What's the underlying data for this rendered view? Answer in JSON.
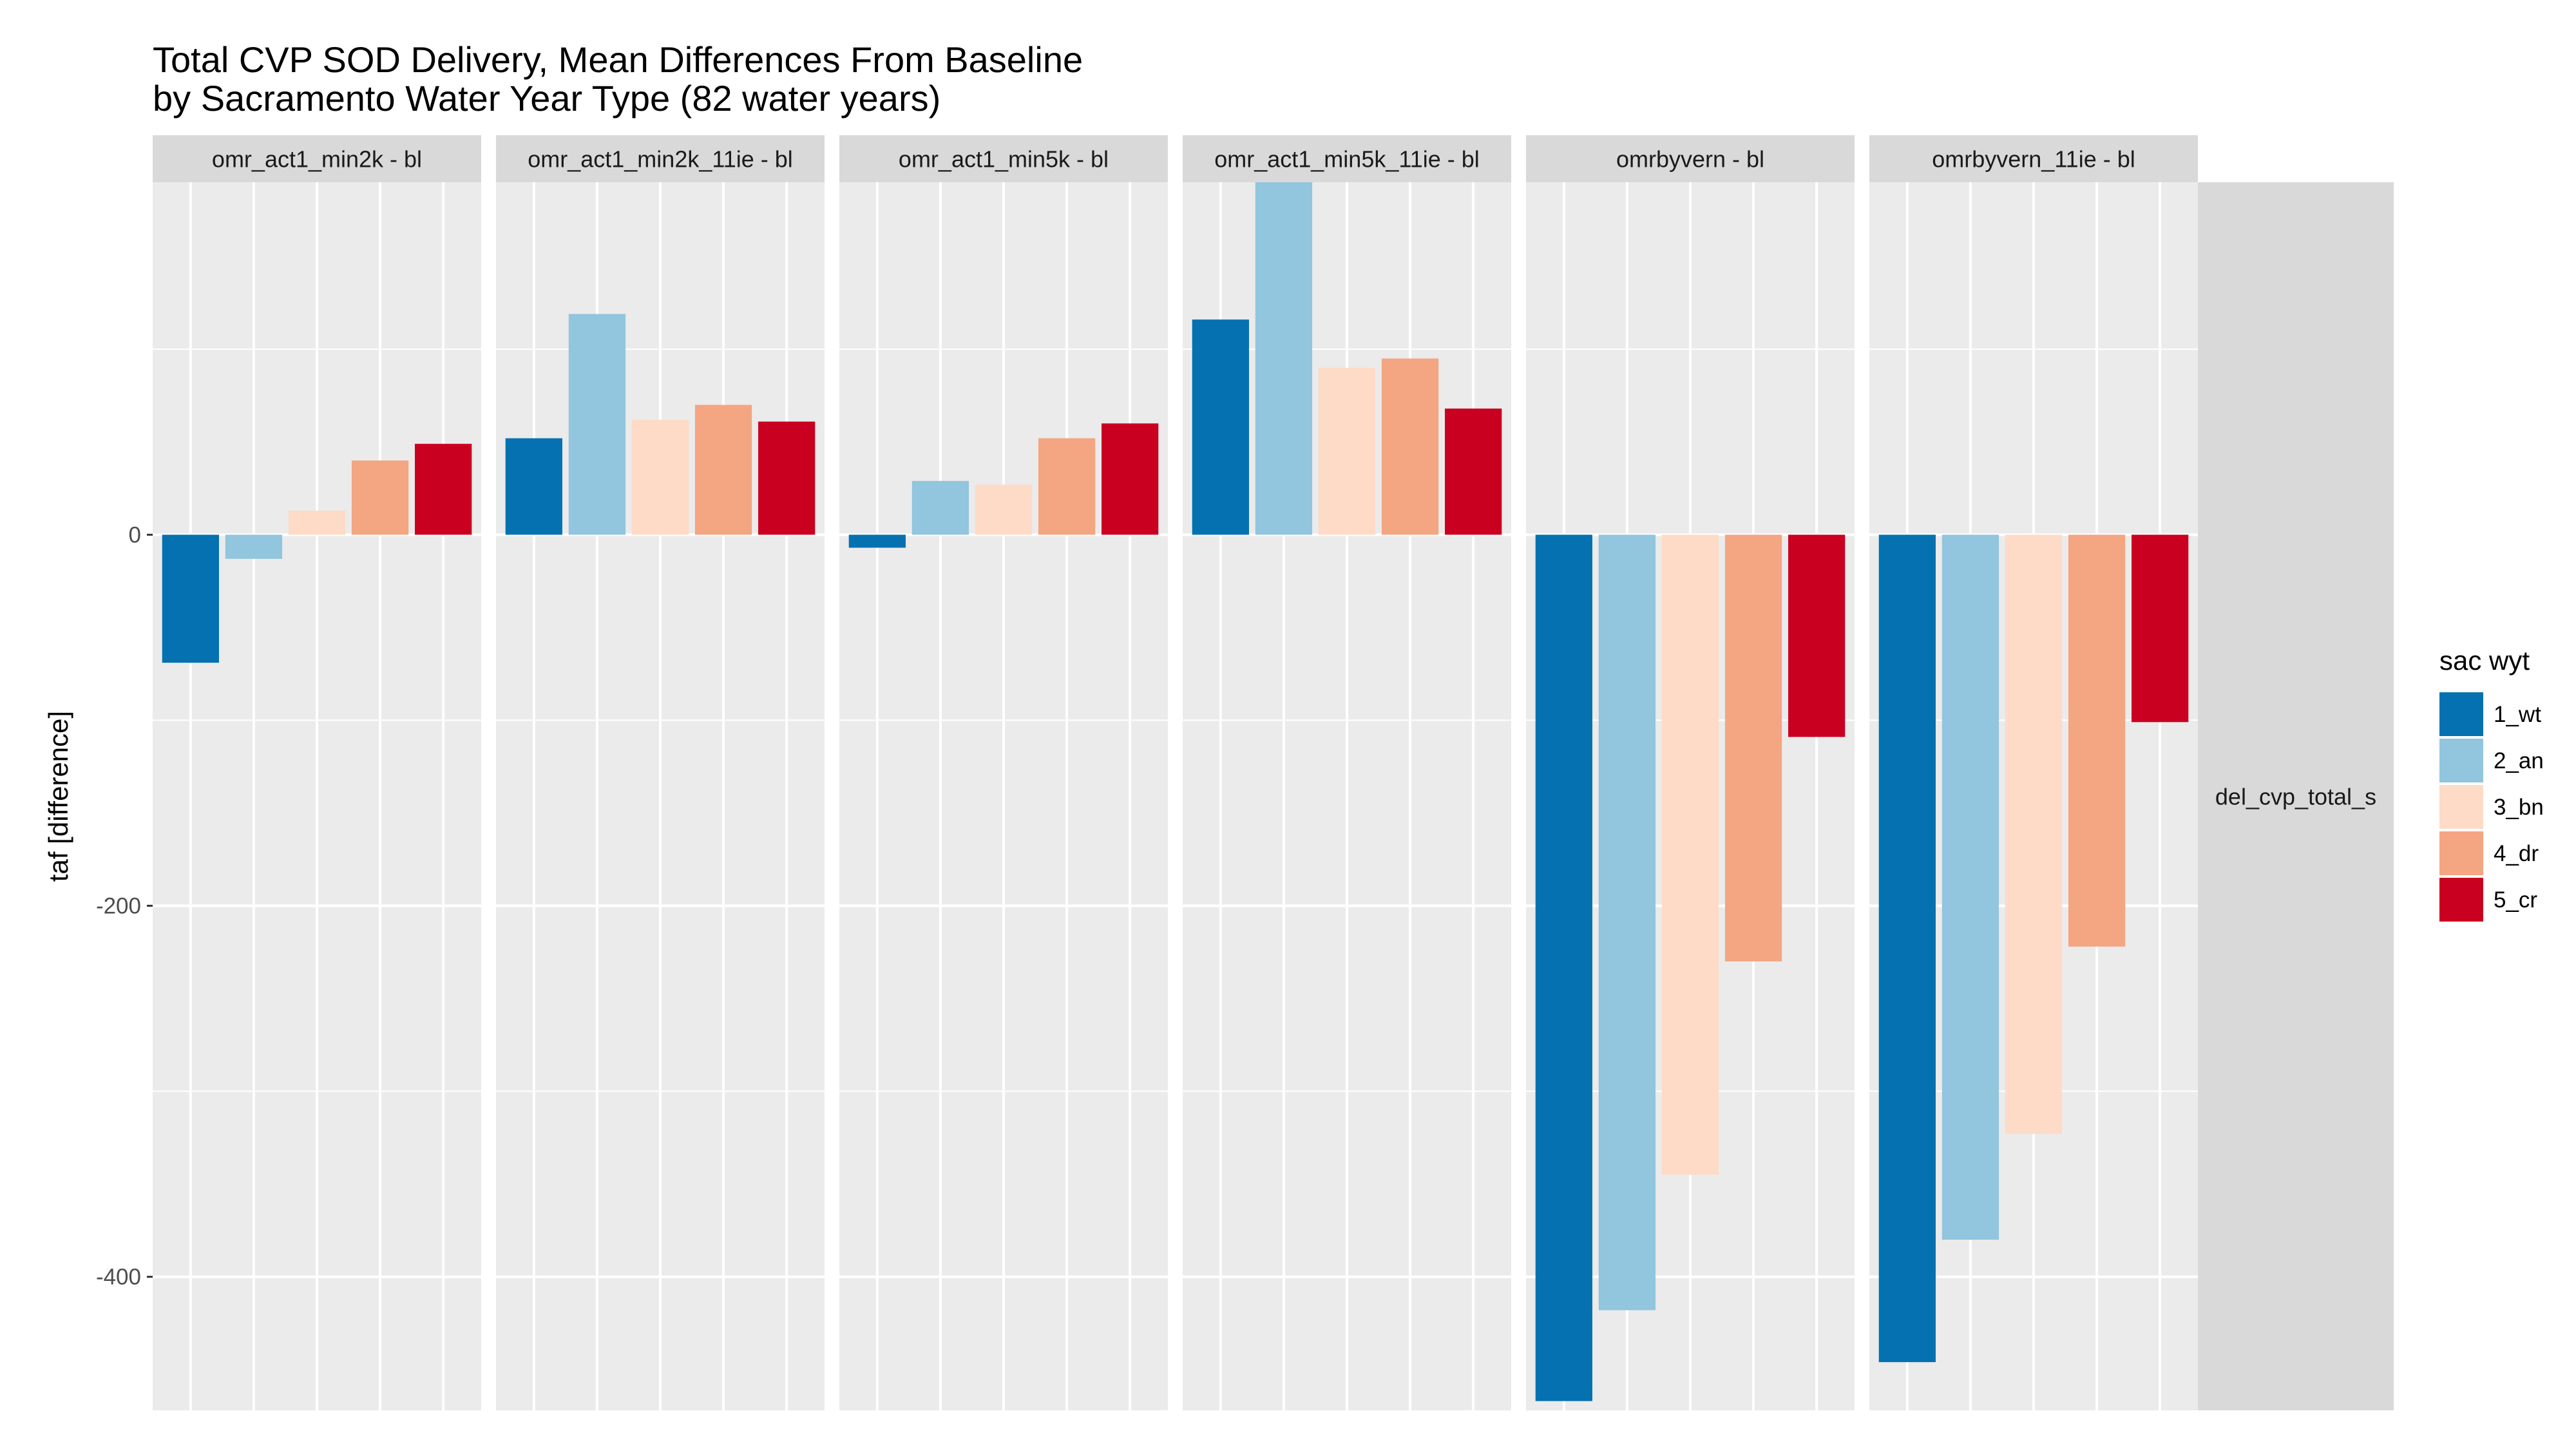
{
  "chart_data": {
    "type": "bar",
    "title": "Total CVP SOD Delivery, Mean Differences From Baseline",
    "subtitle": "by Sacramento Water Year Type (82 water years)",
    "ylabel": "taf [difference]",
    "xlabel": "",
    "ylim": [
      -472,
      190
    ],
    "y_ticks": [
      0,
      -200,
      -400
    ],
    "y_tick_labels": [
      "0",
      "-200",
      "-400"
    ],
    "grid": true,
    "row_strip_label": "del_cvp_total_s",
    "categories": [
      "1_wt",
      "2_an",
      "3_bn",
      "4_dr",
      "5_cr"
    ],
    "colors": {
      "1_wt": "#0571b0",
      "2_an": "#92c5de",
      "3_bn": "#fddbc7",
      "4_dr": "#f4a582",
      "5_cr": "#ca0020"
    },
    "legend": {
      "title": "sac wyt",
      "placement": "right",
      "entries": [
        "1_wt",
        "2_an",
        "3_bn",
        "4_dr",
        "5_cr"
      ]
    },
    "panels": [
      {
        "name": "omr_act1_min2k - bl",
        "values": [
          -69,
          -13,
          13,
          40,
          49
        ]
      },
      {
        "name": "omr_act1_min2k_11ie - bl",
        "values": [
          52,
          119,
          62,
          70,
          61
        ]
      },
      {
        "name": "omr_act1_min5k - bl",
        "values": [
          -7,
          29,
          27,
          52,
          60
        ]
      },
      {
        "name": "omr_act1_min5k_11ie - bl",
        "values": [
          116,
          190,
          90,
          95,
          68
        ]
      },
      {
        "name": "omrbyvern - bl",
        "values": [
          -467,
          -418,
          -345,
          -230,
          -109
        ]
      },
      {
        "name": "omrbyvern_11ie - bl",
        "values": [
          -446,
          -380,
          -323,
          -222,
          -101
        ]
      }
    ]
  }
}
